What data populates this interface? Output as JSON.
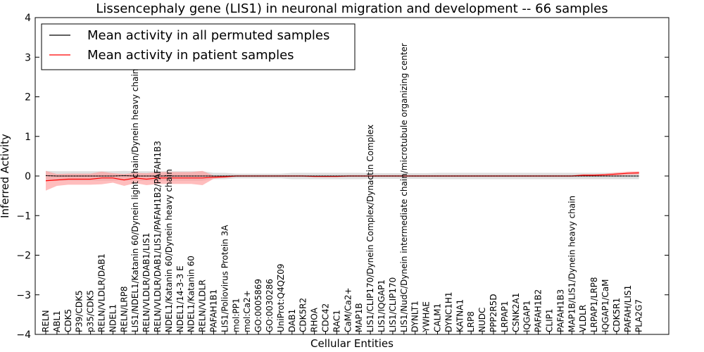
{
  "chart_data": {
    "type": "line",
    "title": "Lissencephaly gene (LIS1) in neuronal migration and development -- 66 samples",
    "xlabel": "Cellular Entities",
    "ylabel": "Inferred Activity",
    "ylim": [
      -4,
      4
    ],
    "yticks": [
      -4,
      -3,
      -2,
      -1,
      0,
      1,
      2,
      3,
      4
    ],
    "ytick_labels": [
      "−4",
      "−3",
      "−2",
      "−1",
      "0",
      "1",
      "2",
      "3",
      "4"
    ],
    "legend_position": "top-left",
    "categories": [
      "RELN",
      "ABL1",
      "CDK5",
      "P39/CDK5",
      "p35/CDK5",
      "RELN/VLDLR/DAB1",
      "NDEL1",
      "RELN/LRP8",
      "LIS1/NDEL1/Katanin 60/Dynein light chain/Dynein heavy chain",
      "RELN/VLDLR/DAB1/LIS1",
      "RELN/VLDLR/DAB1/LIS1/PAFAH1B2/PAFAH1B3",
      "NDEL1/Katanin 60/Dynein heavy chain",
      "NDEL1/14-3-3 E",
      "NDEL1/Katanin 60",
      "RELN/VLDLR",
      "PAFAH1B1",
      "LIS1/Poliovirus Protein 3A",
      "mol:PP1",
      "mol:Ca2+",
      "GO:0005869",
      "GO:0030286",
      "UniProt:Q4QZ09",
      "DAB1",
      "CDK5R2",
      "RHOA",
      "CDC42",
      "RAC1",
      "CaM/Ca2+",
      "MAP1B",
      "LIS1/CLIP170/Dynein Complex/Dynactin Complex",
      "LIS1/IQGAP1",
      "LIS1/CLIP170",
      "LIS1/NudC/Dynein intermediate chain/microtubule organizing center",
      "DYNLT1",
      "YWHAE",
      "CALM1",
      "DYNC1H1",
      "KATNA1",
      "LRP8",
      "NUDC",
      "PPP2R5D",
      "LRPAP1",
      "CSNK2A1",
      "IQGAP1",
      "PAFAH1B2",
      "CLIP1",
      "PAFAH1B3",
      "MAP1B/LIS1/Dynein heavy chain",
      "VLDLR",
      "LRPAP1/LRP8",
      "IQGAP1/CaM",
      "CDK5R1",
      "PAFAH/LIS1",
      "PLA2G7"
    ],
    "series": [
      {
        "name": "Mean activity in all permuted samples",
        "color": "#000000",
        "values": [
          0.01,
          0.0,
          0.0,
          0.0,
          0.0,
          0.0,
          0.0,
          0.01,
          0.0,
          0.0,
          0.0,
          0.0,
          0.0,
          0.0,
          0.0,
          0.0,
          0.0,
          0.0,
          0.0,
          0.0,
          0.0,
          0.0,
          0.0,
          0.0,
          0.0,
          0.0,
          0.0,
          0.0,
          0.0,
          0.0,
          0.0,
          0.0,
          0.0,
          0.0,
          0.0,
          0.0,
          0.0,
          0.0,
          0.0,
          0.0,
          0.0,
          0.0,
          0.0,
          0.0,
          0.0,
          0.0,
          0.0,
          0.0,
          0.0,
          0.0,
          0.0,
          0.0,
          0.0,
          0.0
        ],
        "band": [
          0.12,
          0.12,
          0.12,
          0.12,
          0.12,
          0.12,
          0.12,
          0.12,
          0.12,
          0.12,
          0.12,
          0.12,
          0.12,
          0.12,
          0.12,
          0.08,
          0.08,
          0.06,
          0.06,
          0.06,
          0.06,
          0.06,
          0.08,
          0.08,
          0.08,
          0.08,
          0.08,
          0.08,
          0.08,
          0.07,
          0.07,
          0.07,
          0.07,
          0.07,
          0.07,
          0.08,
          0.08,
          0.08,
          0.08,
          0.08,
          0.08,
          0.08,
          0.08,
          0.08,
          0.08,
          0.08,
          0.08,
          0.08,
          0.08,
          0.08,
          0.08,
          0.08,
          0.08,
          0.08
        ]
      },
      {
        "name": "Mean activity in patient samples",
        "color": "#ff0000",
        "values": [
          -0.12,
          -0.1,
          -0.08,
          -0.08,
          -0.08,
          -0.05,
          -0.05,
          -0.1,
          -0.05,
          -0.08,
          -0.05,
          -0.05,
          -0.05,
          -0.05,
          -0.05,
          -0.03,
          -0.02,
          0.0,
          0.0,
          0.0,
          0.0,
          0.0,
          0.0,
          0.0,
          -0.01,
          -0.01,
          -0.01,
          0.0,
          0.0,
          0.0,
          0.0,
          0.0,
          0.0,
          0.0,
          0.0,
          0.0,
          0.0,
          0.0,
          0.0,
          0.0,
          0.0,
          0.0,
          0.0,
          0.0,
          0.0,
          0.0,
          0.0,
          0.0,
          0.02,
          0.02,
          0.03,
          0.05,
          0.07,
          0.08
        ],
        "band": [
          0.25,
          0.15,
          0.14,
          0.14,
          0.14,
          0.16,
          0.12,
          0.15,
          0.13,
          0.15,
          0.15,
          0.15,
          0.15,
          0.15,
          0.18,
          0.04,
          0.03,
          0.02,
          0.02,
          0.02,
          0.02,
          0.02,
          0.02,
          0.02,
          0.02,
          0.02,
          0.02,
          0.02,
          0.02,
          0.02,
          0.02,
          0.02,
          0.02,
          0.02,
          0.02,
          0.02,
          0.02,
          0.02,
          0.02,
          0.02,
          0.02,
          0.02,
          0.02,
          0.02,
          0.02,
          0.02,
          0.02,
          0.02,
          0.02,
          0.02,
          0.03,
          0.04,
          0.04,
          0.04
        ]
      }
    ]
  }
}
